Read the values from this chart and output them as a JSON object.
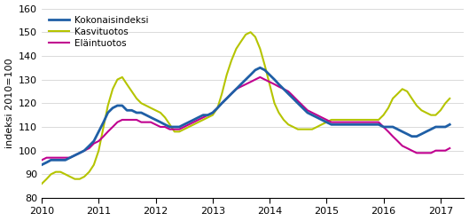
{
  "title": "",
  "ylabel": "indeksi 2010=100",
  "ylim": [
    80,
    160
  ],
  "yticks": [
    80,
    90,
    100,
    110,
    120,
    130,
    140,
    150,
    160
  ],
  "line_colors": {
    "Kokonaisindeksi": "#1f5fa6",
    "Kasvituotos": "#b5c400",
    "Eläintuotos": "#c0008f"
  },
  "line_widths": {
    "Kokonaisindeksi": 2.0,
    "Kasvituotos": 1.5,
    "Eläintuotos": 1.5
  },
  "n_months": 87,
  "kokonaisindeksi": [
    94,
    95,
    96,
    96,
    96,
    96,
    97,
    98,
    99,
    100,
    102,
    104,
    108,
    112,
    116,
    118,
    119,
    119,
    117,
    117,
    116,
    116,
    115,
    114,
    113,
    112,
    111,
    110,
    110,
    110,
    111,
    112,
    113,
    114,
    115,
    115,
    116,
    118,
    120,
    122,
    124,
    126,
    128,
    130,
    132,
    134,
    135,
    134,
    132,
    130,
    128,
    126,
    124,
    122,
    120,
    118,
    116,
    115,
    114,
    113,
    112,
    111,
    111,
    111,
    111,
    111,
    111,
    111,
    111,
    111,
    111,
    111,
    110,
    110,
    110,
    109,
    108,
    107,
    106,
    106,
    107,
    108,
    109,
    110,
    110,
    110,
    111
  ],
  "kasvituotos": [
    86,
    88,
    90,
    91,
    91,
    90,
    89,
    88,
    88,
    89,
    91,
    94,
    100,
    110,
    119,
    126,
    130,
    131,
    128,
    125,
    122,
    120,
    119,
    118,
    117,
    116,
    114,
    111,
    108,
    108,
    109,
    110,
    111,
    112,
    113,
    114,
    115,
    118,
    124,
    132,
    138,
    143,
    146,
    149,
    150,
    148,
    143,
    136,
    128,
    120,
    116,
    113,
    111,
    110,
    109,
    109,
    109,
    109,
    110,
    111,
    112,
    113,
    113,
    113,
    113,
    113,
    113,
    113,
    113,
    113,
    113,
    113,
    115,
    118,
    122,
    124,
    126,
    125,
    122,
    119,
    117,
    116,
    115,
    115,
    117,
    120,
    122
  ],
  "elaintuotos": [
    96,
    97,
    97,
    97,
    97,
    97,
    97,
    98,
    99,
    100,
    101,
    103,
    104,
    106,
    108,
    110,
    112,
    113,
    113,
    113,
    113,
    112,
    112,
    112,
    111,
    110,
    110,
    109,
    109,
    109,
    110,
    111,
    112,
    113,
    114,
    115,
    116,
    118,
    120,
    122,
    124,
    126,
    127,
    128,
    129,
    130,
    131,
    130,
    129,
    128,
    127,
    126,
    125,
    123,
    121,
    119,
    117,
    116,
    115,
    114,
    113,
    112,
    112,
    112,
    112,
    112,
    112,
    112,
    112,
    112,
    112,
    112,
    110,
    108,
    106,
    104,
    102,
    101,
    100,
    99,
    99,
    99,
    99,
    100,
    100,
    100,
    101
  ]
}
